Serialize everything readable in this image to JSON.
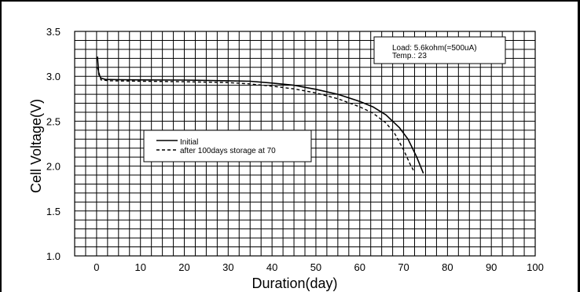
{
  "chart_data": {
    "type": "line",
    "title": "",
    "xlabel": "Duration(day)",
    "ylabel": "Cell Voltage(V)",
    "xlim": [
      -5,
      100
    ],
    "ylim": [
      1.0,
      3.5
    ],
    "x_ticks": [
      0,
      10,
      20,
      30,
      40,
      50,
      60,
      70,
      80,
      90,
      100
    ],
    "y_ticks": [
      1.0,
      1.5,
      2.0,
      2.5,
      3.0,
      3.5
    ],
    "grid": true,
    "legend_position": "center-left",
    "annotation": [
      "Load: 5.6kohm(=500uA)",
      "Temp.: 23"
    ],
    "series": [
      {
        "name": "Initial",
        "style": "solid",
        "color": "#000000",
        "points": [
          [
            0.2,
            3.22
          ],
          [
            0.5,
            3.02
          ],
          [
            1,
            2.98
          ],
          [
            2,
            2.965
          ],
          [
            5,
            2.962
          ],
          [
            10,
            2.96
          ],
          [
            20,
            2.958
          ],
          [
            30,
            2.95
          ],
          [
            35,
            2.945
          ],
          [
            40,
            2.925
          ],
          [
            45,
            2.9
          ],
          [
            50,
            2.855
          ],
          [
            55,
            2.8
          ],
          [
            60,
            2.72
          ],
          [
            63,
            2.66
          ],
          [
            66,
            2.57
          ],
          [
            69,
            2.43
          ],
          [
            71,
            2.3
          ],
          [
            73,
            2.1
          ],
          [
            74.5,
            1.92
          ]
        ]
      },
      {
        "name": "after 100days storage at 70",
        "style": "dashed",
        "color": "#000000",
        "points": [
          [
            0.2,
            3.1
          ],
          [
            1,
            2.96
          ],
          [
            3,
            2.95
          ],
          [
            10,
            2.945
          ],
          [
            20,
            2.94
          ],
          [
            30,
            2.93
          ],
          [
            35,
            2.915
          ],
          [
            40,
            2.89
          ],
          [
            45,
            2.86
          ],
          [
            50,
            2.815
          ],
          [
            55,
            2.75
          ],
          [
            60,
            2.66
          ],
          [
            63,
            2.59
          ],
          [
            66,
            2.48
          ],
          [
            68,
            2.36
          ],
          [
            70,
            2.18
          ],
          [
            71.5,
            2.02
          ],
          [
            72.5,
            1.93
          ]
        ]
      }
    ]
  }
}
